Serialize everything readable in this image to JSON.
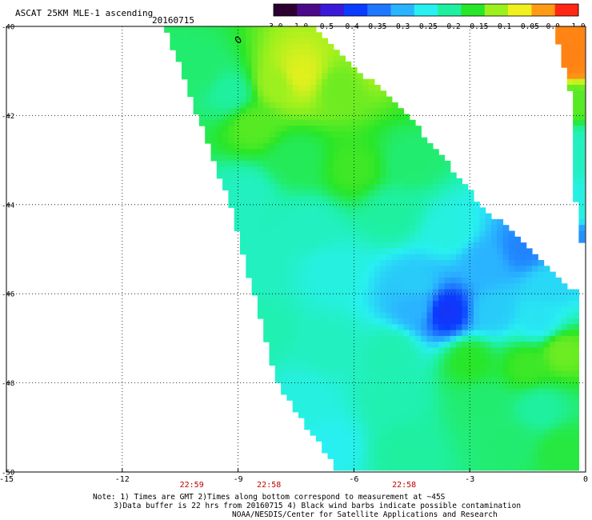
{
  "chart_data": {
    "type": "heatmap",
    "title": "ASCAT 25KM MLE-1 ascending",
    "date": "20160715",
    "colorbar": {
      "ticks": [
        "-3.0",
        "-1.0",
        "-0.5",
        "-0.4",
        "-0.35",
        "-0.3",
        "-0.25",
        "-0.2",
        "-0.15",
        "-0.1",
        "-0.05",
        "0.0",
        "1.0"
      ],
      "colors": [
        "#2b0030",
        "#4a0a8a",
        "#3a1ad8",
        "#0a3cff",
        "#1e78ff",
        "#2ab4ff",
        "#28f0f0",
        "#1ef0a0",
        "#28e628",
        "#9cf01e",
        "#f0f01e",
        "#ff9a14",
        "#ff2814"
      ]
    },
    "x_axis": {
      "ticks": [
        -15,
        -12,
        -9,
        -6,
        -3,
        0
      ],
      "tick_labels": [
        "-15",
        "-12",
        "-9",
        "-6",
        "-3",
        "0"
      ],
      "range": [
        -15,
        0
      ]
    },
    "y_axis": {
      "ticks": [
        -40,
        -42,
        -44,
        -46,
        -48,
        -50
      ],
      "tick_labels": [
        "-40",
        "-42",
        "-44",
        "-46",
        "-48",
        "-50"
      ],
      "range": [
        -50,
        -40
      ]
    },
    "grid": true,
    "times": [
      {
        "label": "22:59",
        "lon": -10.2
      },
      {
        "label": "22:58",
        "lon": -8.2
      },
      {
        "label": "22:58",
        "lon": -4.7
      }
    ],
    "swaths": [
      {
        "name": "main",
        "polygon": [
          [
            -10.9,
            -40.0
          ],
          [
            -7.1,
            -40.0
          ],
          [
            -4.6,
            -42.0
          ],
          [
            -2.7,
            -44.0
          ],
          [
            -0.2,
            -46.0
          ],
          [
            -0.2,
            -50.0
          ],
          [
            -6.4,
            -50.0
          ],
          [
            -8.0,
            -48.0
          ],
          [
            -9.2,
            -44.0
          ],
          [
            -10.9,
            -40.0
          ]
        ]
      },
      {
        "name": "edge",
        "polygon": [
          [
            -0.8,
            -40.0
          ],
          [
            0.0,
            -40.0
          ],
          [
            0.0,
            -44.9
          ],
          [
            -0.2,
            -44.9
          ],
          [
            -0.4,
            -41.5
          ],
          [
            -0.8,
            -40.0
          ]
        ]
      }
    ],
    "values": [
      {
        "lon": -10.0,
        "lat": -41.0,
        "v": -0.18
      },
      {
        "lon": -9.2,
        "lat": -41.5,
        "v": -0.2
      },
      {
        "lon": -8.0,
        "lat": -41.3,
        "v": -0.1
      },
      {
        "lon": -7.4,
        "lat": -41.1,
        "v": -0.06
      },
      {
        "lon": -6.4,
        "lat": -41.4,
        "v": -0.12
      },
      {
        "lon": -5.2,
        "lat": -40.8,
        "v": -0.09
      },
      {
        "lon": -4.2,
        "lat": -41.2,
        "v": -0.15
      },
      {
        "lon": -8.6,
        "lat": -42.2,
        "v": -0.13
      },
      {
        "lon": -7.5,
        "lat": -43.0,
        "v": -0.17
      },
      {
        "lon": -6.0,
        "lat": -43.2,
        "v": -0.14
      },
      {
        "lon": -4.5,
        "lat": -43.0,
        "v": -0.18
      },
      {
        "lon": -8.8,
        "lat": -43.8,
        "v": -0.22
      },
      {
        "lon": -7.2,
        "lat": -44.5,
        "v": -0.22
      },
      {
        "lon": -5.0,
        "lat": -44.2,
        "v": -0.2
      },
      {
        "lon": -3.5,
        "lat": -44.6,
        "v": -0.24
      },
      {
        "lon": -8.6,
        "lat": -45.4,
        "v": -0.22
      },
      {
        "lon": -6.6,
        "lat": -45.5,
        "v": -0.24
      },
      {
        "lon": -4.4,
        "lat": -45.8,
        "v": -0.28
      },
      {
        "lon": -2.6,
        "lat": -45.3,
        "v": -0.3
      },
      {
        "lon": -1.6,
        "lat": -45.0,
        "v": -0.34
      },
      {
        "lon": -1.0,
        "lat": -45.8,
        "v": -0.27
      },
      {
        "lon": -3.6,
        "lat": -46.4,
        "v": -0.42
      },
      {
        "lon": -4.4,
        "lat": -46.3,
        "v": -0.3
      },
      {
        "lon": -2.4,
        "lat": -46.4,
        "v": -0.28
      },
      {
        "lon": -1.2,
        "lat": -46.6,
        "v": -0.26
      },
      {
        "lon": -8.4,
        "lat": -46.8,
        "v": -0.21
      },
      {
        "lon": -6.6,
        "lat": -47.2,
        "v": -0.22
      },
      {
        "lon": -5.0,
        "lat": -47.3,
        "v": -0.21
      },
      {
        "lon": -3.0,
        "lat": -47.5,
        "v": -0.15
      },
      {
        "lon": -1.5,
        "lat": -47.6,
        "v": -0.14
      },
      {
        "lon": -0.6,
        "lat": -47.3,
        "v": -0.12
      },
      {
        "lon": -7.2,
        "lat": -48.4,
        "v": -0.24
      },
      {
        "lon": -5.0,
        "lat": -48.4,
        "v": -0.21
      },
      {
        "lon": -2.7,
        "lat": -48.5,
        "v": -0.18
      },
      {
        "lon": -1.2,
        "lat": -48.6,
        "v": -0.2
      },
      {
        "lon": -6.6,
        "lat": -49.4,
        "v": -0.25
      },
      {
        "lon": -4.7,
        "lat": -49.5,
        "v": -0.2
      },
      {
        "lon": -2.0,
        "lat": -49.3,
        "v": -0.18
      },
      {
        "lon": -0.6,
        "lat": -49.5,
        "v": -0.16
      },
      {
        "lon": -0.4,
        "lat": -40.7,
        "v": 0.2
      },
      {
        "lon": -0.3,
        "lat": -41.6,
        "v": -0.13
      },
      {
        "lon": -0.2,
        "lat": -42.8,
        "v": -0.22
      },
      {
        "lon": -0.2,
        "lat": -44.1,
        "v": -0.24
      },
      {
        "lon": -0.1,
        "lat": -44.8,
        "v": -0.33
      }
    ],
    "contour": {
      "lon": -9.0,
      "lat": -40.3,
      "label": "0"
    }
  },
  "footnote": {
    "line1": "Note: 1) Times are GMT 2)Times along bottom correspond to measurement at ~45S",
    "line2": "3)Data buffer is 22 hrs from 20160715 4) Black wind barbs indicate possible contamination",
    "line3": "NOAA/NESDIS/Center for Satellite Applications and Research"
  },
  "colors": {
    "time_labels": "#c00000",
    "grid": "#000000"
  }
}
